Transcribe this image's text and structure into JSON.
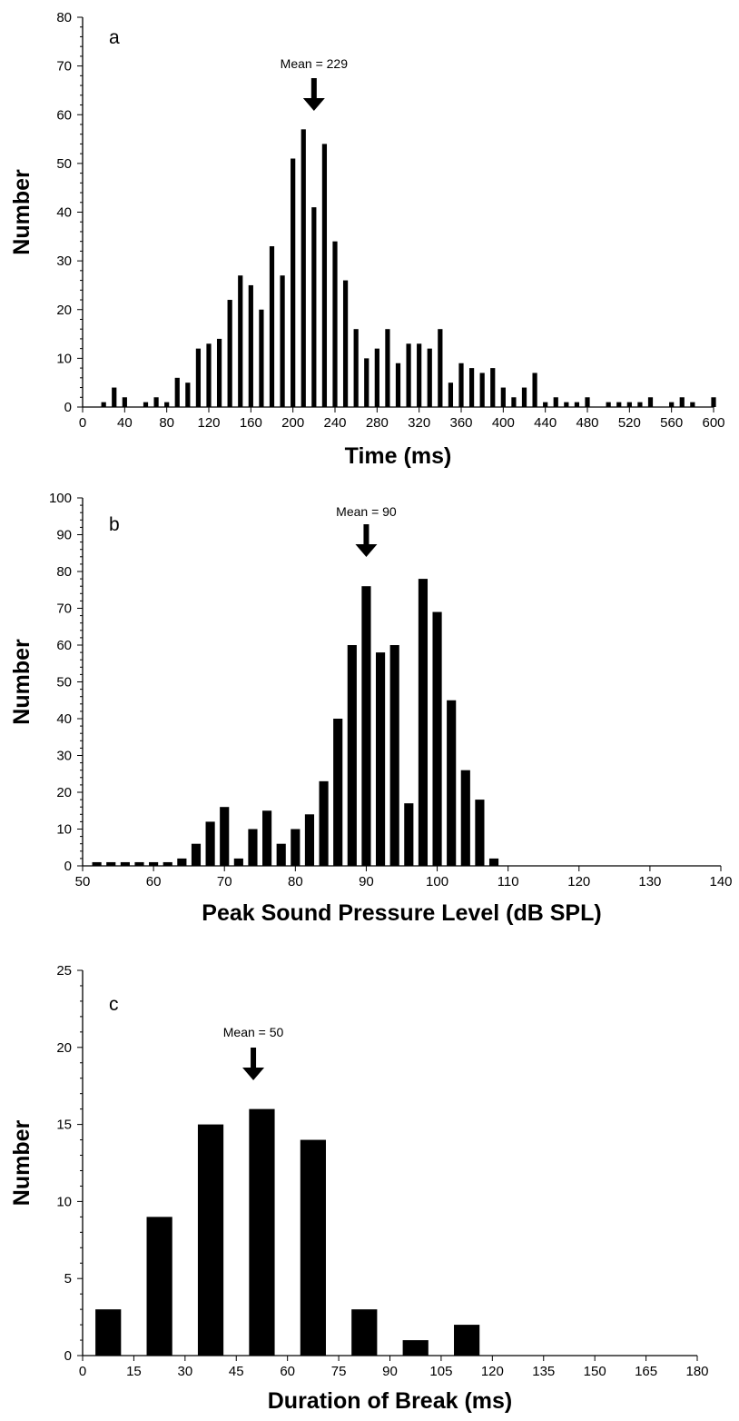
{
  "chart_data": [
    {
      "panel": "a",
      "type": "bar",
      "xlabel": "Time (ms)",
      "ylabel": "Number",
      "xlim": [
        0,
        600
      ],
      "ylim": [
        0,
        80
      ],
      "x_ticks": [
        0,
        40,
        80,
        120,
        160,
        200,
        240,
        280,
        320,
        360,
        400,
        440,
        480,
        520,
        560,
        600
      ],
      "y_ticks": [
        0,
        10,
        20,
        30,
        40,
        50,
        60,
        70,
        80
      ],
      "bar_width": 4.5,
      "annotation": {
        "text": "Mean = 229",
        "x": 220
      },
      "x": [
        20,
        30,
        40,
        60,
        70,
        80,
        90,
        100,
        110,
        120,
        130,
        140,
        150,
        160,
        170,
        180,
        190,
        200,
        210,
        220,
        230,
        240,
        250,
        260,
        270,
        280,
        290,
        300,
        310,
        320,
        330,
        340,
        350,
        360,
        370,
        380,
        390,
        400,
        410,
        420,
        430,
        440,
        450,
        460,
        470,
        480,
        500,
        510,
        520,
        530,
        540,
        560,
        570,
        580,
        600
      ],
      "values": [
        1,
        4,
        2,
        1,
        2,
        1,
        6,
        5,
        12,
        13,
        14,
        22,
        27,
        25,
        20,
        33,
        27,
        51,
        57,
        41,
        54,
        34,
        26,
        16,
        10,
        12,
        16,
        9,
        13,
        13,
        12,
        16,
        5,
        9,
        8,
        7,
        8,
        4,
        2,
        4,
        7,
        1,
        2,
        1,
        1,
        2,
        1,
        1,
        1,
        1,
        2,
        1,
        2,
        1,
        2
      ]
    },
    {
      "panel": "b",
      "type": "bar",
      "xlabel": "Peak Sound Pressure Level (dB SPL)",
      "ylabel": "Number",
      "xlim": [
        50,
        140
      ],
      "ylim": [
        0,
        100
      ],
      "x_ticks": [
        50,
        60,
        70,
        80,
        90,
        100,
        110,
        120,
        130,
        140
      ],
      "y_ticks": [
        0,
        10,
        20,
        30,
        40,
        50,
        60,
        70,
        80,
        90,
        100
      ],
      "bar_width": 1.3,
      "annotation": {
        "text": "Mean = 90",
        "x": 90
      },
      "x": [
        52,
        54,
        56,
        58,
        60,
        62,
        64,
        66,
        68,
        70,
        72,
        74,
        76,
        78,
        80,
        82,
        84,
        86,
        88,
        90,
        92,
        94,
        96,
        98,
        100,
        102,
        104,
        106,
        108
      ],
      "values": [
        1,
        1,
        1,
        1,
        1,
        1,
        2,
        6,
        12,
        16,
        2,
        10,
        15,
        6,
        10,
        14,
        23,
        40,
        60,
        76,
        58,
        60,
        17,
        78,
        69,
        45,
        26,
        18,
        2
      ]
    },
    {
      "panel": "c",
      "type": "bar",
      "xlabel": "Duration of Break (ms)",
      "ylabel": "Number",
      "xlim": [
        0,
        180
      ],
      "ylim": [
        0,
        25
      ],
      "x_ticks": [
        0,
        15,
        30,
        45,
        60,
        75,
        90,
        105,
        120,
        135,
        150,
        165,
        180
      ],
      "y_ticks": [
        0,
        5,
        10,
        15,
        20,
        25
      ],
      "bar_width": 7.5,
      "annotation": {
        "text": "Mean = 50",
        "x": 50
      },
      "x": [
        7.5,
        22.5,
        37.5,
        52.5,
        67.5,
        82.5,
        97.5,
        112.5
      ],
      "values": [
        3,
        9,
        15,
        16,
        14,
        3,
        1,
        2
      ]
    }
  ]
}
